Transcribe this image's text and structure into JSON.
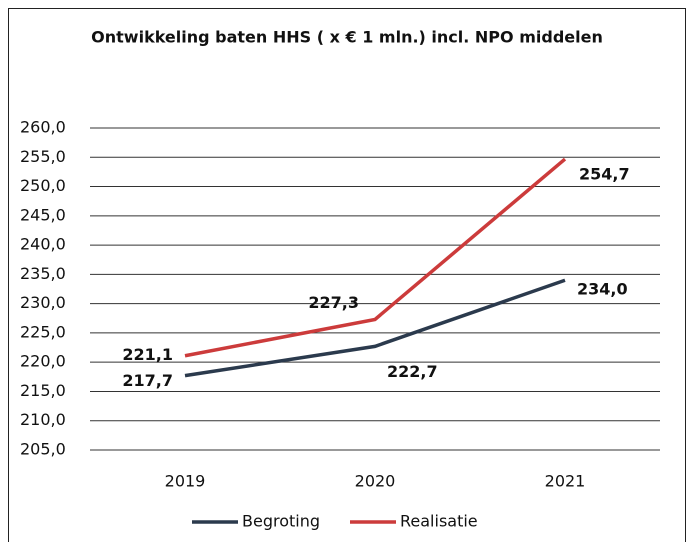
{
  "chart_data": {
    "type": "line",
    "title": "Ontwikkeling baten HHS ( x € 1 mln.) incl. NPO middelen",
    "categories": [
      "2019",
      "2020",
      "2021"
    ],
    "series": [
      {
        "name": "Begroting",
        "color": "#2b3a4d",
        "values": [
          217.7,
          222.7,
          234.0
        ],
        "value_labels": [
          "217,7",
          "222,7",
          "234,0"
        ]
      },
      {
        "name": "Realisatie",
        "color": "#cc3b3b",
        "values": [
          221.1,
          227.3,
          254.7
        ],
        "value_labels": [
          "221,1",
          "227,3",
          "254,7"
        ]
      }
    ],
    "ylim": [
      205,
      260
    ],
    "yticks": [
      {
        "value": 205,
        "label": "205,0"
      },
      {
        "value": 210,
        "label": "210,0"
      },
      {
        "value": 215,
        "label": "215,0"
      },
      {
        "value": 220,
        "label": "220,0"
      },
      {
        "value": 225,
        "label": "225,0"
      },
      {
        "value": 230,
        "label": "230,0"
      },
      {
        "value": 235,
        "label": "235,0"
      },
      {
        "value": 240,
        "label": "240,0"
      },
      {
        "value": 245,
        "label": "245,0"
      },
      {
        "value": 250,
        "label": "250,0"
      },
      {
        "value": 255,
        "label": "255,0"
      },
      {
        "value": 260,
        "label": "260,0"
      }
    ],
    "grid": true,
    "legend": "bottom"
  }
}
